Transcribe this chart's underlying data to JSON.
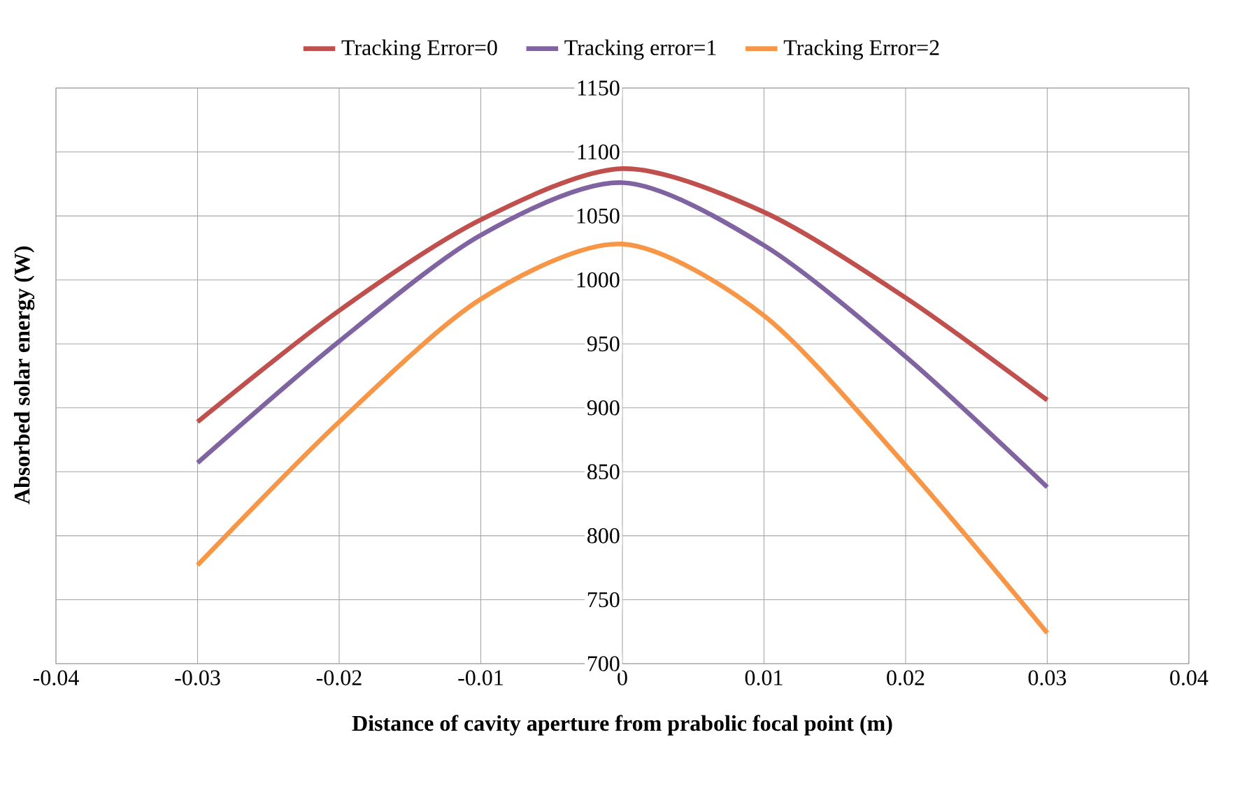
{
  "chart_data": {
    "type": "line",
    "xlabel": "Distance of cavity aperture from prabolic focal point (m)",
    "ylabel": "Absorbed solar energy (W)",
    "x": [
      -0.03,
      -0.02,
      -0.01,
      0,
      0.01,
      0.02,
      0.03
    ],
    "series": [
      {
        "name": "Tracking Error=0",
        "color": "#c0504d",
        "values": [
          889,
          976,
          1047,
          1087,
          1053,
          986,
          906
        ]
      },
      {
        "name": "Tracking error=1",
        "color": "#8064a2",
        "values": [
          857,
          952,
          1035,
          1076,
          1027,
          940,
          838
        ]
      },
      {
        "name": "Tracking Error=2",
        "color": "#f79646",
        "values": [
          777,
          889,
          985,
          1028,
          972,
          855,
          724
        ]
      }
    ],
    "xlim": [
      -0.04,
      0.04
    ],
    "xticks": [
      -0.04,
      -0.03,
      -0.02,
      -0.01,
      0,
      0.01,
      0.02,
      0.03,
      0.04
    ],
    "ylim": [
      700,
      1150
    ],
    "yticks": [
      700,
      750,
      800,
      850,
      900,
      950,
      1000,
      1050,
      1100,
      1150
    ],
    "grid": true,
    "legend": "top",
    "line_style": "solid"
  }
}
